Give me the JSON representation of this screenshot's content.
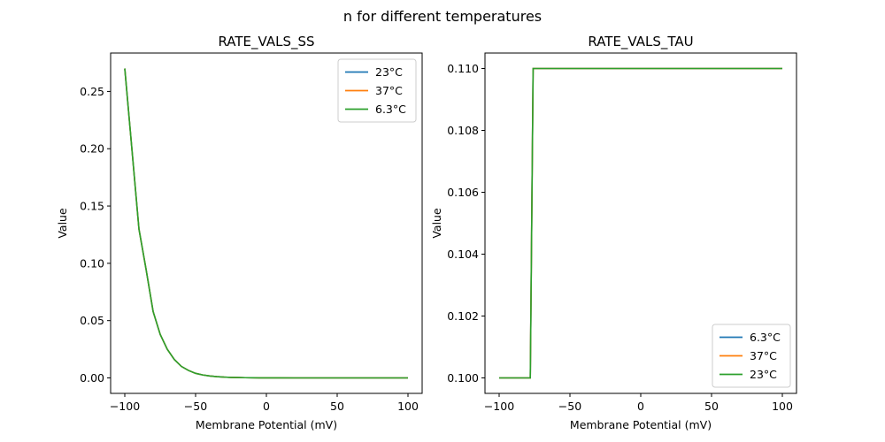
{
  "figure": {
    "suptitle": "n for different temperatures"
  },
  "chart_data": [
    {
      "type": "line",
      "title": "RATE_VALS_SS",
      "xlabel": "Membrane Potential (mV)",
      "ylabel": "Value",
      "xlim": [
        -110,
        110
      ],
      "ylim": [
        -0.0135,
        0.2835
      ],
      "xticks": [
        -100,
        -50,
        0,
        50,
        100
      ],
      "xtick_labels": [
        "−100",
        "−50",
        "0",
        "50",
        "100"
      ],
      "yticks": [
        0,
        0.05,
        0.1,
        0.15,
        0.2,
        0.25
      ],
      "ytick_labels": [
        "0.00",
        "0.05",
        "0.10",
        "0.15",
        "0.20",
        "0.25"
      ],
      "legend": "upper right",
      "grid": false,
      "x": [
        -100,
        -95,
        -90,
        -85,
        -80,
        -75,
        -70,
        -65,
        -60,
        -55,
        -50,
        -45,
        -40,
        -35,
        -30,
        -25,
        -20,
        -15,
        -10,
        -5,
        0,
        10,
        20,
        40,
        60,
        80,
        100
      ],
      "series": [
        {
          "name": "23°C",
          "color": "#1f77b4",
          "values": [
            0.27,
            0.2,
            0.13,
            0.095,
            0.058,
            0.038,
            0.025,
            0.016,
            0.01,
            0.0065,
            0.004,
            0.0026,
            0.0017,
            0.0011,
            0.0007,
            0.00045,
            0.0003,
            0.0002,
            0.00012,
            8e-05,
            5e-05,
            2e-05,
            1e-05,
            0,
            0,
            0,
            0
          ]
        },
        {
          "name": "37°C",
          "color": "#ff7f0e",
          "values": [
            0.27,
            0.2,
            0.13,
            0.095,
            0.058,
            0.038,
            0.025,
            0.016,
            0.01,
            0.0065,
            0.004,
            0.0026,
            0.0017,
            0.0011,
            0.0007,
            0.00045,
            0.0003,
            0.0002,
            0.00012,
            8e-05,
            5e-05,
            2e-05,
            1e-05,
            0,
            0,
            0,
            0
          ]
        },
        {
          "name": "6.3°C",
          "color": "#2ca02c",
          "values": [
            0.27,
            0.2,
            0.13,
            0.095,
            0.058,
            0.038,
            0.025,
            0.016,
            0.01,
            0.0065,
            0.004,
            0.0026,
            0.0017,
            0.0011,
            0.0007,
            0.00045,
            0.0003,
            0.0002,
            0.00012,
            8e-05,
            5e-05,
            2e-05,
            1e-05,
            0,
            0,
            0,
            0
          ]
        }
      ]
    },
    {
      "type": "line",
      "title": "RATE_VALS_TAU",
      "xlabel": "Membrane Potential (mV)",
      "ylabel": "Value",
      "xlim": [
        -110,
        110
      ],
      "ylim": [
        0.0995,
        0.1105
      ],
      "xticks": [
        -100,
        -50,
        0,
        50,
        100
      ],
      "xtick_labels": [
        "−100",
        "−50",
        "0",
        "50",
        "100"
      ],
      "yticks": [
        0.1,
        0.102,
        0.104,
        0.106,
        0.108,
        0.11
      ],
      "ytick_labels": [
        "0.100",
        "0.102",
        "0.104",
        "0.106",
        "0.108",
        "0.110"
      ],
      "legend": "lower right",
      "grid": false,
      "x": [
        -100,
        -78,
        -76,
        100
      ],
      "series": [
        {
          "name": "6.3°C",
          "color": "#1f77b4",
          "values": [
            0.1,
            0.1,
            0.11,
            0.11
          ]
        },
        {
          "name": "37°C",
          "color": "#ff7f0e",
          "values": [
            0.1,
            0.1,
            0.11,
            0.11
          ]
        },
        {
          "name": "23°C",
          "color": "#2ca02c",
          "values": [
            0.1,
            0.1,
            0.11,
            0.11
          ]
        }
      ]
    }
  ]
}
